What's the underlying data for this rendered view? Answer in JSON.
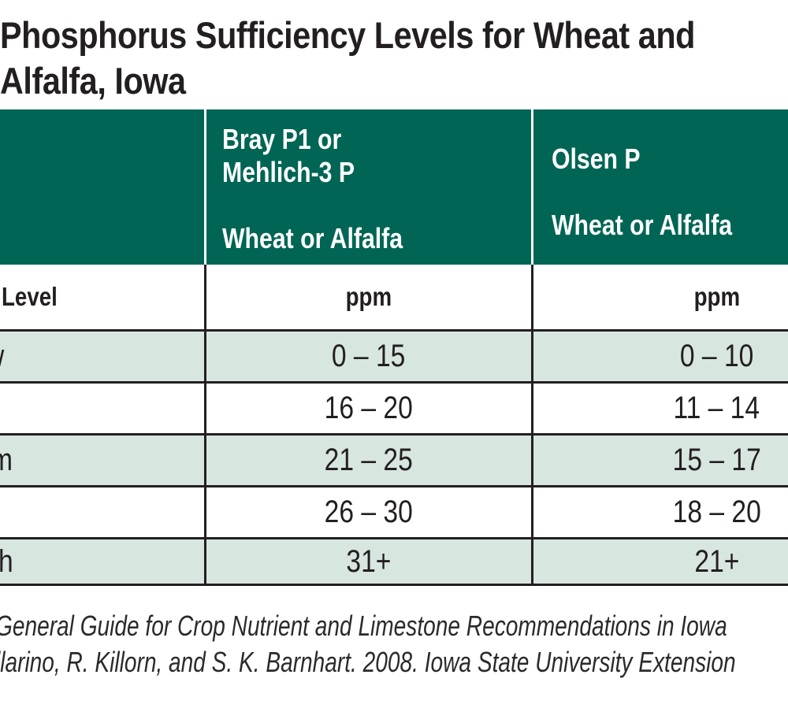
{
  "title": "Phosphorus Sufficiency Levels for Wheat and\nAlfalfa, Iowa",
  "table": {
    "header": {
      "col1": "",
      "col2": "Bray P1 or\nMehlich-3 P\n\nWheat or Alfalfa",
      "col3": "Olsen P\n\nWheat or Alfalfa"
    },
    "subheader": {
      "level_label": "Level",
      "col2_unit": "ppm",
      "col3_unit": "ppm"
    },
    "rows": [
      {
        "label_fragment": "w",
        "bray": "0 – 15",
        "olsen": "0 – 10"
      },
      {
        "label_fragment": "",
        "bray": "16 – 20",
        "olsen": "11 – 14"
      },
      {
        "label_fragment": "m",
        "bray": "21 – 25",
        "olsen": "15 – 17"
      },
      {
        "label_fragment": "",
        "bray": "26 – 30",
        "olsen": "18 – 20"
      },
      {
        "label_fragment": "h",
        "bray": "31+",
        "olsen": "21+"
      }
    ]
  },
  "source": "General Guide for Crop Nutrient and Limestone Recommendations in Iowa\nllarino, R. Killorn, and S. K. Barnhart. 2008. Iowa State University Extension",
  "colors": {
    "header_green": "#006554",
    "row_light_green": "#d8e6e0",
    "ink": "#231f20"
  }
}
